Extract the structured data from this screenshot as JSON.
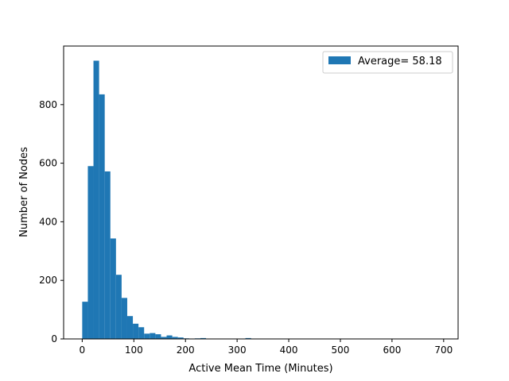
{
  "colors": {
    "bar": "#1f77b4",
    "axis": "#000000",
    "legend_border": "#cccccc",
    "background": "#ffffff"
  },
  "chart_data": {
    "type": "bar",
    "title": "",
    "xlabel": "Active Mean Time (Minutes)",
    "ylabel": "Number of Nodes",
    "xlim": [
      -36,
      728
    ],
    "ylim": [
      0,
      1000
    ],
    "grid": false,
    "legend_position": "top-right",
    "bin_width": 10.9,
    "series": [
      {
        "name": "Average= 58.18",
        "bin_start": [
          0,
          10.9,
          21.8,
          32.7,
          43.6,
          54.5,
          65.4,
          76.3,
          87.2,
          98.1,
          109.0,
          119.9,
          130.8,
          141.7,
          152.6,
          163.5,
          174.4,
          185.3,
          196.2,
          207.1,
          218.0,
          228.9,
          239.8,
          250.7,
          261.6,
          272.5,
          283.4,
          294.3,
          305.2,
          316.1,
          327.0,
          337.9,
          348.8,
          359.7,
          370.6,
          381.5,
          392.4,
          403.3,
          414.2,
          425.1,
          436.0,
          446.9,
          457.8,
          468.7,
          479.6,
          490.5,
          501.4,
          512.3,
          523.2,
          534.1,
          545.0,
          555.9,
          566.8,
          577.7,
          588.6,
          599.5,
          610.4,
          621.3,
          632.2,
          643.1,
          654.0,
          664.9,
          675.8,
          686.7,
          697.6
        ],
        "values": [
          127,
          590,
          950,
          835,
          572,
          343,
          219,
          140,
          78,
          52,
          40,
          18,
          20,
          16,
          7,
          12,
          7,
          5,
          2,
          1,
          2,
          3,
          1,
          0,
          1,
          0,
          0,
          0,
          1,
          3,
          0,
          0,
          0,
          0,
          0,
          0,
          0,
          0,
          0,
          0,
          0,
          0,
          0,
          0,
          0,
          0,
          0,
          0,
          0,
          0,
          0,
          0,
          0,
          0,
          0,
          0,
          0,
          0,
          0,
          0,
          0,
          0,
          0,
          0,
          1
        ]
      }
    ],
    "x_ticks": [
      0,
      100,
      200,
      300,
      400,
      500,
      600,
      700
    ],
    "x_tick_labels": [
      "0",
      "100",
      "200",
      "300",
      "400",
      "500",
      "600",
      "700"
    ],
    "y_ticks": [
      0,
      200,
      400,
      600,
      800
    ],
    "y_tick_labels": [
      "0",
      "200",
      "400",
      "600",
      "800"
    ]
  }
}
